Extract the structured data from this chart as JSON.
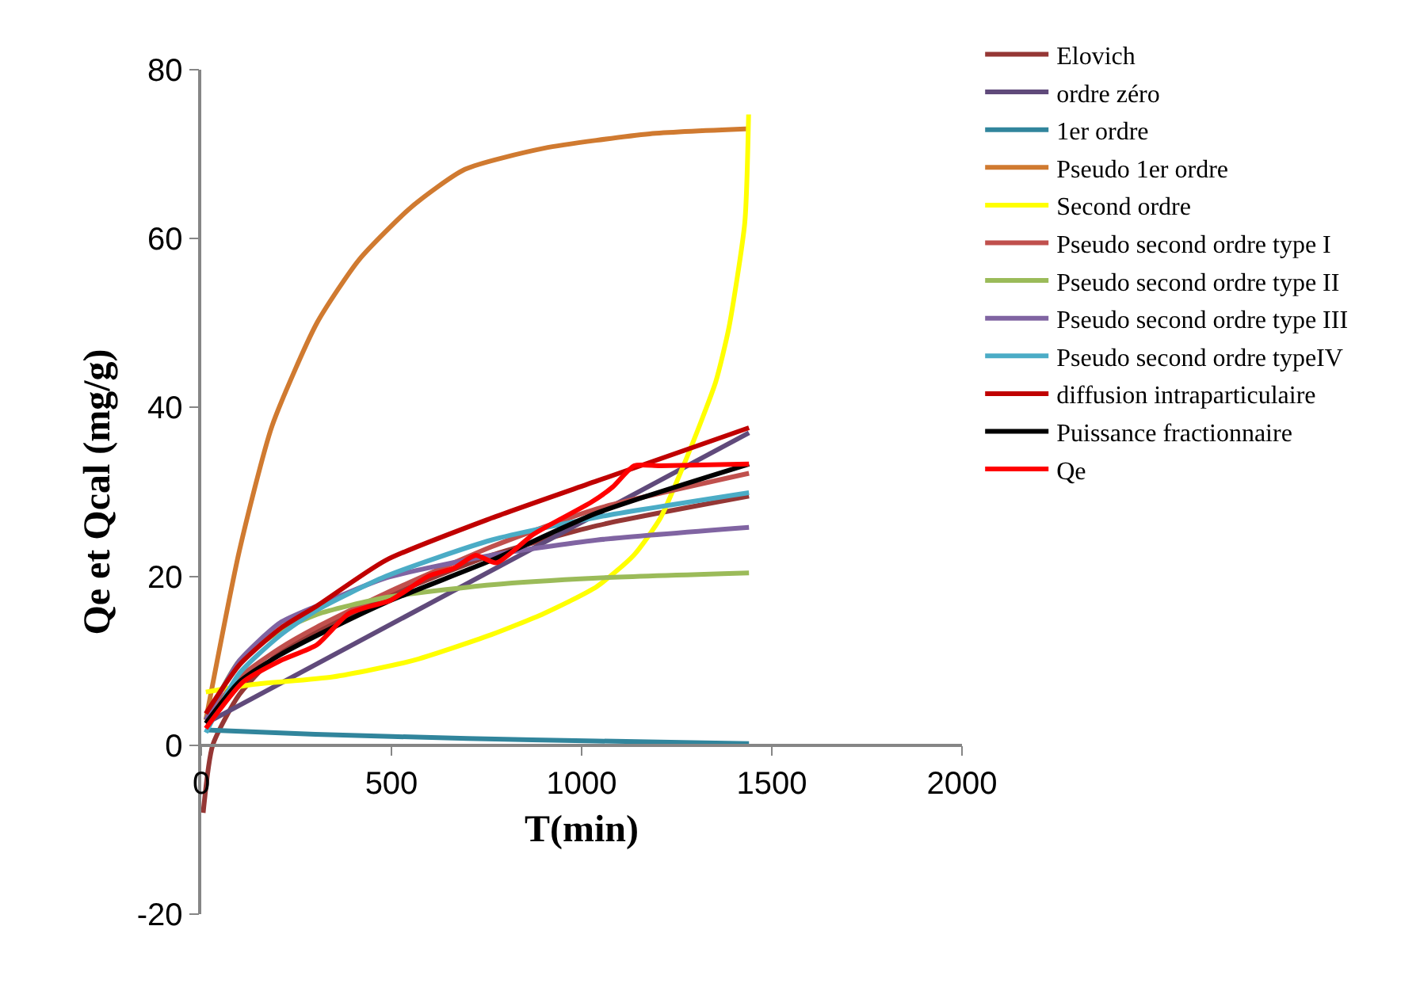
{
  "chart_data": {
    "type": "line",
    "xlabel": "T(min)",
    "ylabel": "Qe et Qcal (mg/g)",
    "xlim": [
      0,
      2000
    ],
    "xticks": [
      0,
      500,
      1000,
      1500,
      2000
    ],
    "ylim": [
      -20,
      80
    ],
    "yticks": [
      -20,
      0,
      20,
      40,
      60,
      80
    ],
    "grid": false,
    "legend": "right",
    "marker": "none",
    "line_style": "solid",
    "x": [
      12,
      100,
      207,
      304,
      485,
      763,
      1040,
      1440
    ],
    "series": [
      {
        "name": "Elovich",
        "color": "#953735",
        "x": [
          5,
          30,
          100,
          207,
          485,
          763,
          1040,
          1440
        ],
        "values": [
          -8,
          0,
          6,
          11,
          17.5,
          22.5,
          26,
          29.5
        ]
      },
      {
        "name": "ordre zéro",
        "color": "#604a7b",
        "x": [
          12,
          1440
        ],
        "values": [
          2.6,
          37
        ]
      },
      {
        "name": "1er ordre",
        "color": "#31859c",
        "x": [
          12,
          300,
          700,
          1040,
          1440
        ],
        "values": [
          1.8,
          1.3,
          0.8,
          0.5,
          0.2
        ]
      },
      {
        "name": "Pseudo 1er ordre",
        "color": "#d07a30",
        "x": [
          12,
          100,
          186,
          304,
          415,
          554,
          693,
          901,
          1179,
          1443
        ],
        "values": [
          3,
          23,
          37.8,
          50,
          57.5,
          63.8,
          68.2,
          70.7,
          72.4,
          73
        ]
      },
      {
        "name": "Second ordre",
        "color": "#ffff00",
        "x": [
          12,
          137,
          346,
          554,
          763,
          901,
          1040,
          1137,
          1207,
          1262,
          1318,
          1353,
          1387,
          1429,
          1439
        ],
        "values": [
          6.3,
          7.2,
          8.1,
          10,
          13.1,
          15.6,
          18.8,
          22.5,
          26.9,
          32.5,
          38.8,
          43.1,
          49.4,
          61.9,
          74.7
        ]
      },
      {
        "name": "Pseudo second ordre type I",
        "color": "#c0504d",
        "values": [
          3,
          8,
          11.5,
          14,
          18,
          23.5,
          28,
          32.2
        ]
      },
      {
        "name": "Pseudo second ordre type II",
        "color": "#9bbb59",
        "values": [
          3,
          10,
          13.5,
          15.5,
          17.5,
          19,
          19.8,
          20.4
        ]
      },
      {
        "name": "Pseudo second ordre type III",
        "color": "#8064a2",
        "values": [
          3,
          10,
          14.5,
          16.5,
          19.8,
          22.5,
          24.3,
          25.8
        ]
      },
      {
        "name": "Pseudo second ordre typeIV",
        "color": "#4bacc6",
        "values": [
          1.5,
          8.5,
          13,
          16,
          20,
          24.3,
          27,
          29.9
        ]
      },
      {
        "name": "diffusion intraparticulaire",
        "color": "#c00000",
        "values": [
          3.75,
          9.5,
          13.8,
          16.5,
          21.9,
          26.9,
          31.3,
          37.6
        ]
      },
      {
        "name": "Puissance fractionnaire",
        "color": "#000000",
        "values": [
          2.6,
          7.5,
          10.7,
          13,
          16.9,
          21.9,
          27.5,
          33.3
        ]
      },
      {
        "name": "Qe",
        "color": "#ff0000",
        "x": [
          12,
          110,
          207,
          304,
          388,
          499,
          596,
          665,
          721,
          776,
          874,
          1026,
          1082,
          1138,
          1207,
          1440
        ],
        "values": [
          2,
          7.5,
          10,
          11.9,
          15.6,
          17.2,
          20,
          21,
          22.5,
          21.6,
          25,
          28.8,
          30.6,
          33.1,
          33.1,
          33.3
        ]
      }
    ]
  }
}
